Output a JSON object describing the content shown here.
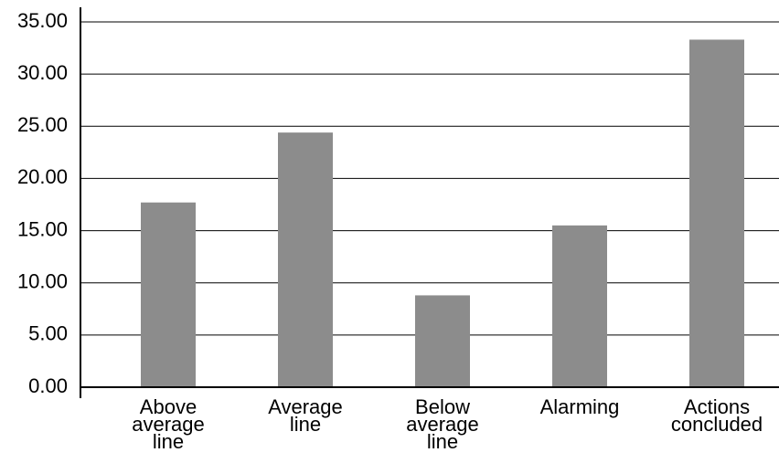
{
  "chart_data": {
    "type": "bar",
    "categories": [
      "Above average line",
      "Average line",
      "Below average line",
      "Alarming",
      "Actions concluded"
    ],
    "values": [
      17.7,
      24.4,
      8.8,
      15.5,
      33.3
    ],
    "color": "#8c8c8c",
    "ylim": [
      0,
      35
    ],
    "yticks": [
      {
        "value": 0,
        "label": "0.00"
      },
      {
        "value": 5,
        "label": "5.00"
      },
      {
        "value": 10,
        "label": "10.00"
      },
      {
        "value": 15,
        "label": "15.00"
      },
      {
        "value": 20,
        "label": "20.00"
      },
      {
        "value": 25,
        "label": "25.00"
      },
      {
        "value": 30,
        "label": "30.00"
      },
      {
        "value": 35,
        "label": "35.00"
      }
    ],
    "grid": true
  }
}
